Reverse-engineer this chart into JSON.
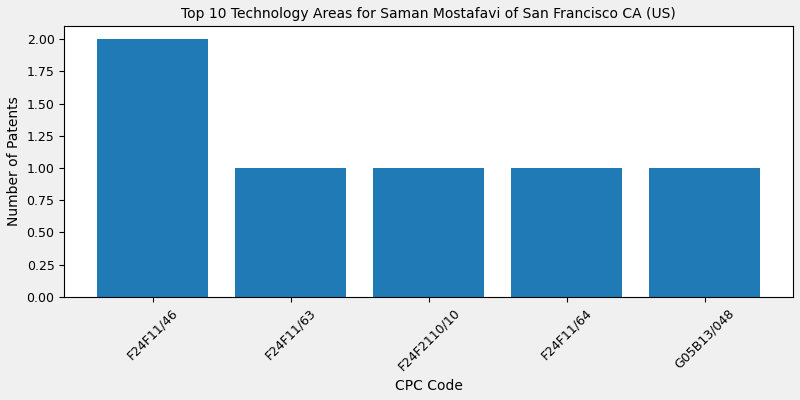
{
  "title": "Top 10 Technology Areas for Saman Mostafavi of San Francisco CA (US)",
  "xlabel": "CPC Code",
  "ylabel": "Number of Patents",
  "categories": [
    "F24F11/46",
    "F24F11/63",
    "F24F2110/10",
    "F24F11/64",
    "G05B13/048"
  ],
  "values": [
    2,
    1,
    1,
    1,
    1
  ],
  "bar_color": "#1f7ab5",
  "ylim": [
    0,
    2.1
  ],
  "yticks": [
    0.0,
    0.25,
    0.5,
    0.75,
    1.0,
    1.25,
    1.5,
    1.75,
    2.0
  ],
  "figsize": [
    8.0,
    4.0
  ],
  "dpi": 100,
  "title_fontsize": 10,
  "axis_fontsize": 10,
  "tick_fontsize": 9,
  "bar_width": 0.8
}
